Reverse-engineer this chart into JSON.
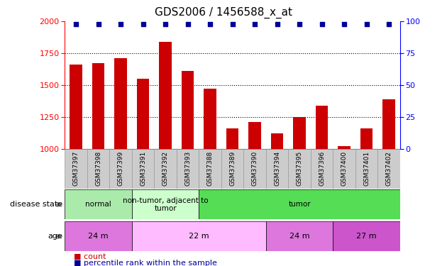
{
  "title": "GDS2006 / 1456588_x_at",
  "samples": [
    "GSM37397",
    "GSM37398",
    "GSM37399",
    "GSM37391",
    "GSM37392",
    "GSM37393",
    "GSM37388",
    "GSM37389",
    "GSM37390",
    "GSM37394",
    "GSM37395",
    "GSM37396",
    "GSM37400",
    "GSM37401",
    "GSM37402"
  ],
  "counts": [
    1660,
    1670,
    1710,
    1550,
    1840,
    1610,
    1470,
    1160,
    1210,
    1120,
    1250,
    1340,
    1020,
    1160,
    1390
  ],
  "percentiles": [
    98,
    98,
    98,
    98,
    98,
    98,
    98,
    98,
    98,
    98,
    98,
    98,
    98,
    98,
    98
  ],
  "ylim_left": [
    1000,
    2000
  ],
  "ylim_right": [
    0,
    100
  ],
  "bar_color": "#cc0000",
  "dot_color": "#000099",
  "yticks_left": [
    1000,
    1250,
    1500,
    1750,
    2000
  ],
  "yticks_right": [
    0,
    25,
    50,
    75,
    100
  ],
  "disease_state_groups": [
    {
      "label": "normal",
      "start": 0,
      "end": 3,
      "color": "#aaeaaa"
    },
    {
      "label": "non-tumor, adjacent to\ntumor",
      "start": 3,
      "end": 6,
      "color": "#ccffcc"
    },
    {
      "label": "tumor",
      "start": 6,
      "end": 15,
      "color": "#55dd55"
    }
  ],
  "age_groups": [
    {
      "label": "24 m",
      "start": 0,
      "end": 3,
      "color": "#dd77dd"
    },
    {
      "label": "22 m",
      "start": 3,
      "end": 9,
      "color": "#ffbbff"
    },
    {
      "label": "24 m",
      "start": 9,
      "end": 12,
      "color": "#dd77dd"
    },
    {
      "label": "27 m",
      "start": 12,
      "end": 15,
      "color": "#cc55cc"
    }
  ],
  "legend_items": [
    {
      "label": "count",
      "color": "#cc0000"
    },
    {
      "label": "percentile rank within the sample",
      "color": "#000099"
    }
  ],
  "background_color": "#ffffff",
  "grid_color": "#888888",
  "xticklabel_bg": "#cccccc",
  "title_fontsize": 11,
  "tick_fontsize": 8,
  "label_fontsize": 9
}
